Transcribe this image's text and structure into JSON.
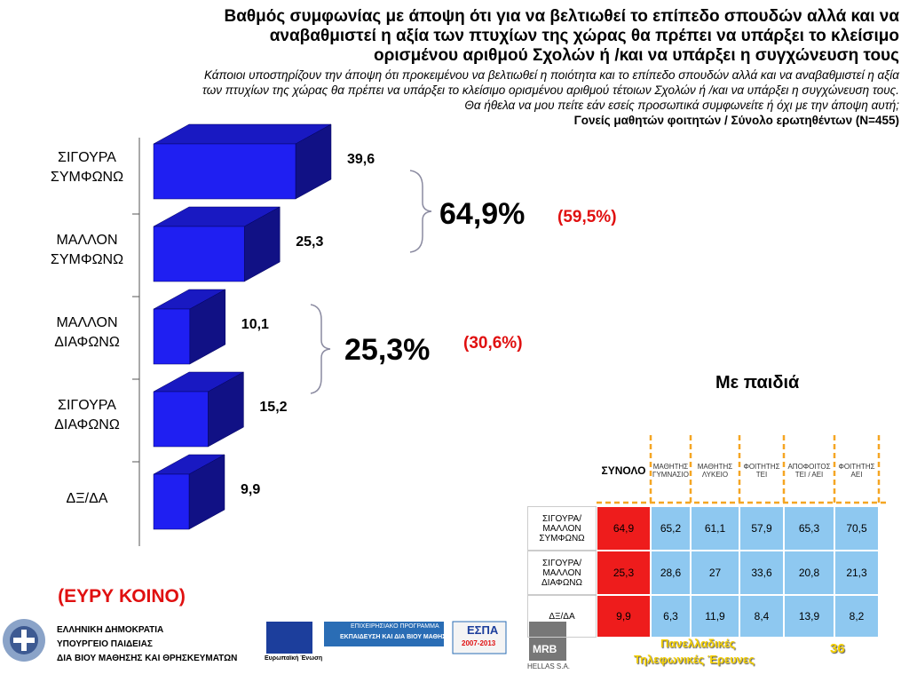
{
  "title_lines": [
    "Βαθμός συμφωνίας με άποψη ότι για να βελτιωθεί το επίπεδο σπουδών αλλά και να",
    "αναβαθμιστεί η αξία των πτυχίων της χώρας θα πρέπει να υπάρξει το κλείσιμο",
    "ορισμένου αριθμού Σχολών ή /και να υπάρξει η συγχώνευση τους"
  ],
  "subtitle_lines": [
    "Κάποιοι υποστηρίζουν την άποψη ότι προκειμένου να βελτιωθεί η ποιότητα και το επίπεδο σπουδών αλλά και να αναβαθμιστεί η αξία",
    "των πτυχίων της χώρας θα πρέπει να υπάρξει το κλείσιμο ορισμένου αριθμού τέτοιων Σχολών ή /και να υπάρξει η συγχώνευση τους.",
    "Θα ήθελα να μου πείτε εάν εσείς προσωπικά συμφωνείτε ή όχι με την άποψη αυτή;"
  ],
  "base": "Γονείς μαθητών φοιτητών / Σύνολο ερωτηθέντων (N=455)",
  "chart_data": {
    "type": "bar3d",
    "categories": [
      "ΣΙΓΟΥΡΑ ΣΥΜΦΩΝΩ",
      "ΜΑΛΛΟΝ ΣΥΜΦΩΝΩ",
      "ΜΑΛΛΟΝ ΔΙΑΦΩΝΩ",
      "ΣΙΓΟΥΡΑ ΔΙΑΦΩΝΩ",
      "ΔΞ/ΔΑ"
    ],
    "values": [
      39.6,
      25.3,
      10.1,
      15.2,
      9.9
    ],
    "value_labels": [
      "39,6",
      "25,3",
      "10,1",
      "15,2",
      "9,9"
    ],
    "color": "#1f1ff2",
    "annotations": [
      {
        "total": "64,9%",
        "previous": "(59,5%)"
      },
      {
        "total": "25,3%",
        "previous": "(30,6%)"
      }
    ]
  },
  "sample_label": "(ΕΥΡΥ ΚΟΙΝΟ)",
  "table": {
    "title": "Με παιδιά",
    "header": [
      "ΣΥΝΟΛΟ",
      "ΜΑΘΗΤΗΣ ΓΥΜΝΑΣΙΟ",
      "ΜΑΘΗΤΗΣ ΛΥΚΕΙΟ",
      "ΦΟΙΤΗΤΗΣ ΤΕΙ",
      "ΑΠΟΦΟΙΤΟΣ ΤΕΙ / ΑΕΙ",
      "ΦΟΙΤΗΤΗΣ ΑΕΙ"
    ],
    "rows": [
      [
        "ΣΙΓΟΥΡΑ/ ΜΑΛΛΟΝ ΣΥΜΦΩΝΩ",
        "64,9",
        "65,2",
        "61,1",
        "57,9",
        "65,3",
        "70,5"
      ],
      [
        "ΣΙΓΟΥΡΑ/ ΜΑΛΛΟΝ ΔΙΑΦΩΝΩ",
        "25,3",
        "28,6",
        "27",
        "33,6",
        "20,8",
        "21,3"
      ],
      [
        "ΔΞ/ΔΑ",
        "9,9",
        "6,3",
        "11,9",
        "8,4",
        "13,9",
        "8,2"
      ]
    ]
  },
  "footer": {
    "ministry": [
      "ΕΛΛΗΝΙΚΗ ΔΗΜΟΚΡΑΤΙΑ",
      "ΥΠΟΥΡΓΕΙΟ ΠΑΙΔΕΙΑΣ",
      "ΔΙΑ ΒΙΟΥ ΜΑΘΗΣΗΣ ΚΑΙ ΘΡΗΣΚΕΥΜΑΤΩΝ"
    ],
    "eu": "Ευρωπαϊκή Ένωση",
    "programme": "ΕΠΙΧΕΙΡΗΣΙΑΚΟ ΠΡΟΓΡΑΜΜΑ",
    "programme_name": "ΕΚΠΑΙΔΕΥΣΗ ΚΑΙ ΔΙΑ ΒΙΟΥ ΜΑΘΗΣΗ",
    "espa": "ΕΣΠΑ",
    "espa_years": "2007-2013",
    "mrb": "MRB",
    "mrb_sub": "HELLAS S.A.",
    "survey": [
      "Πανελλαδικές",
      "Τηλεφωνικές Έρευνες"
    ],
    "page": "36"
  }
}
